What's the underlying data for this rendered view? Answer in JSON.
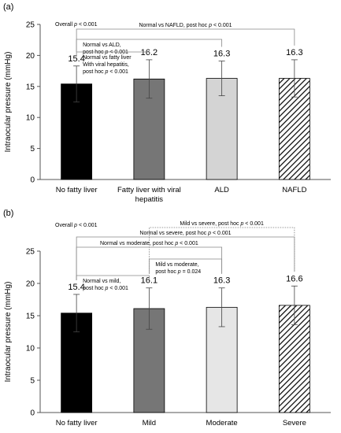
{
  "chart_data": [
    {
      "panel_label": "(a)",
      "type": "bar",
      "ylabel": "Intraocular pressure (mmHg)",
      "ylim": [
        0,
        25
      ],
      "yticks": [
        "0",
        "5",
        "10",
        "15",
        "20",
        "25"
      ],
      "categories": [
        "No fatty liver",
        "Fatty liver with viral hepatitis",
        "ALD",
        "NAFLD"
      ],
      "category_lines": [
        [
          "No fatty liver"
        ],
        [
          "Fatty liver with viral",
          "hepatitis"
        ],
        [
          "ALD"
        ],
        [
          "NAFLD"
        ]
      ],
      "values": [
        15.4,
        16.2,
        16.3,
        16.3
      ],
      "value_labels": [
        "15.4",
        "16.2",
        "16.3",
        "16.3"
      ],
      "error": [
        2.9,
        3.1,
        2.8,
        3.0
      ],
      "colors": [
        "#000000",
        "#767676",
        "#d4d4d4",
        "hatch"
      ],
      "grid": false,
      "annotations": [
        {
          "from": 0,
          "to": 3,
          "line": "solid",
          "lines": [
            "Normal vs NAFLD, post hoc p < 0.001"
          ]
        },
        {
          "from": 0,
          "to": 2,
          "line": "solid",
          "lines": [
            "Normal vs ALD,",
            "post hoc p < 0.001"
          ]
        },
        {
          "from": 0,
          "to": 1,
          "line": "solid",
          "lines": [
            "Normal vs fatty liver",
            "With viral hepatitis,",
            "post hoc p < 0.001"
          ]
        }
      ],
      "overall": "Overall p < 0.001"
    },
    {
      "panel_label": "(b)",
      "type": "bar",
      "ylabel": "Intraocular pressure (mmHg)",
      "ylim": [
        0,
        25
      ],
      "yticks": [
        "0",
        "5",
        "10",
        "15",
        "20",
        "25"
      ],
      "categories": [
        "No fatty liver",
        "Mild",
        "Moderate",
        "Severe"
      ],
      "category_lines": [
        [
          "No fatty liver"
        ],
        [
          "Mild"
        ],
        [
          "Moderate"
        ],
        [
          "Severe"
        ]
      ],
      "values": [
        15.4,
        16.1,
        16.3,
        16.6
      ],
      "value_labels": [
        "15.4",
        "16.1",
        "16.3",
        "16.6"
      ],
      "error": [
        2.9,
        3.2,
        3.0,
        3.0
      ],
      "colors": [
        "#000000",
        "#767676",
        "#e6e6e6",
        "hatch"
      ],
      "grid": false,
      "annotations": [
        {
          "from": 1,
          "to": 3,
          "line": "dotted",
          "lines": [
            "Mild vs severe, post hoc p < 0.001"
          ]
        },
        {
          "from": 0,
          "to": 3,
          "line": "solid",
          "lines": [
            "Normal vs severe, post hoc p < 0.001"
          ]
        },
        {
          "from": 0,
          "to": 2,
          "line": "solid",
          "lines": [
            "Normal vs moderate, post hoc p < 0.001"
          ]
        },
        {
          "from": 1,
          "to": 2,
          "line": "solid",
          "lines": [
            "Mild vs moderate,",
            "post hoc p = 0.024"
          ]
        },
        {
          "from": 0,
          "to": 1,
          "line": "solid",
          "lines": [
            "Normal vs mild,",
            "post hoc p < 0.001"
          ]
        }
      ],
      "overall": "Overall p < 0.001"
    }
  ]
}
